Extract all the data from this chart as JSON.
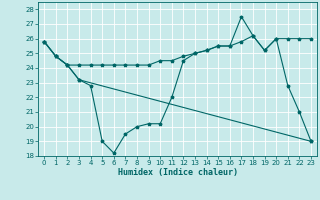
{
  "title": "",
  "xlabel": "Humidex (Indice chaleur)",
  "bg_color": "#c8eaea",
  "line_color": "#006666",
  "grid_color": "#ffffff",
  "xlim": [
    -0.5,
    23.5
  ],
  "ylim": [
    18,
    28.5
  ],
  "yticks": [
    18,
    19,
    20,
    21,
    22,
    23,
    24,
    25,
    26,
    27,
    28
  ],
  "xticks": [
    0,
    1,
    2,
    3,
    4,
    5,
    6,
    7,
    8,
    9,
    10,
    11,
    12,
    13,
    14,
    15,
    16,
    17,
    18,
    19,
    20,
    21,
    22,
    23
  ],
  "line1_x": [
    0,
    1,
    2,
    3,
    4,
    5,
    6,
    7,
    8,
    9,
    10,
    11,
    12,
    13,
    14,
    15,
    16,
    17,
    18,
    19,
    20,
    21,
    22,
    23
  ],
  "line1_y": [
    25.8,
    24.8,
    24.2,
    24.2,
    24.2,
    24.2,
    24.2,
    24.2,
    24.2,
    24.2,
    24.5,
    24.5,
    24.8,
    25.0,
    25.2,
    25.5,
    25.5,
    25.8,
    26.2,
    25.2,
    26.0,
    26.0,
    26.0,
    26.0
  ],
  "line2_x": [
    0,
    1,
    2,
    3,
    4,
    5,
    6,
    7,
    8,
    9,
    10,
    11,
    12,
    13,
    14,
    15,
    16,
    17,
    18,
    19,
    20,
    21,
    22,
    23
  ],
  "line2_y": [
    25.8,
    24.8,
    24.2,
    23.2,
    22.8,
    19.0,
    18.2,
    19.5,
    20.0,
    20.2,
    20.2,
    22.0,
    24.5,
    25.0,
    25.2,
    25.5,
    25.5,
    27.5,
    26.2,
    25.2,
    26.0,
    22.8,
    21.0,
    19.0
  ],
  "line3_x": [
    0,
    1,
    2,
    3,
    23
  ],
  "line3_y": [
    25.8,
    24.8,
    24.2,
    23.2,
    19.0
  ]
}
